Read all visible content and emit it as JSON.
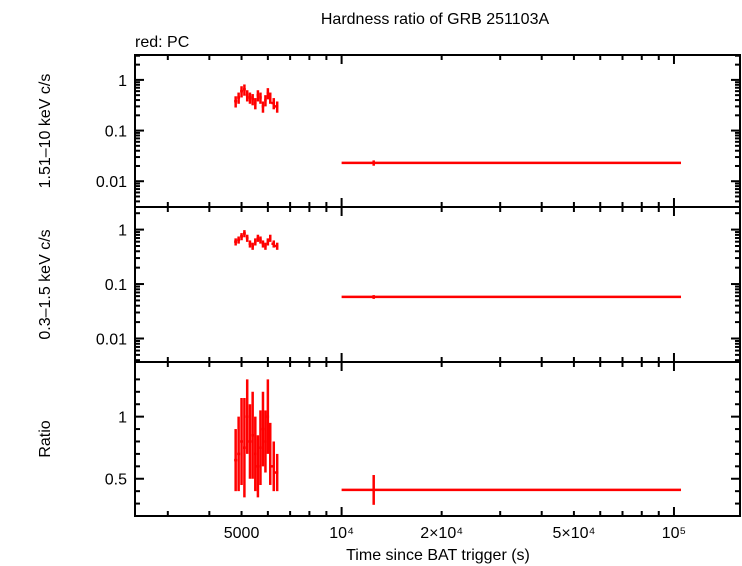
{
  "chart_data": {
    "type": "scatter",
    "title": "Hardness ratio of GRB 251103A",
    "legend_note": "red: PC",
    "xlabel": "Time since BAT trigger (s)",
    "xscale": "log",
    "xlim": [
      2390,
      158000
    ],
    "xticks": [
      {
        "v": 5000,
        "label": "5000"
      },
      {
        "v": 10000,
        "label": "10⁴"
      },
      {
        "v": 20000,
        "label": "2×10⁴"
      },
      {
        "v": 50000,
        "label": "5×10⁴"
      },
      {
        "v": 100000,
        "label": "10⁵"
      }
    ],
    "color": "#ff0000",
    "panels": [
      {
        "ylabel": "1.51–10 keV c/s",
        "yscale": "log",
        "ylim": [
          0.0031,
          3.1
        ],
        "yticks": [
          {
            "v": 1,
            "label": "1"
          },
          {
            "v": 0.1,
            "label": "0.1"
          },
          {
            "v": 0.01,
            "label": "0.01"
          }
        ],
        "points": [
          [
            4800,
            0.38
          ],
          [
            4900,
            0.45
          ],
          [
            5000,
            0.6
          ],
          [
            5100,
            0.65
          ],
          [
            5200,
            0.5
          ],
          [
            5300,
            0.45
          ],
          [
            5400,
            0.42
          ],
          [
            5500,
            0.35
          ],
          [
            5600,
            0.5
          ],
          [
            5700,
            0.45
          ],
          [
            5800,
            0.3
          ],
          [
            5900,
            0.4
          ],
          [
            6000,
            0.55
          ],
          [
            6100,
            0.45
          ],
          [
            6250,
            0.35
          ],
          [
            6400,
            0.3
          ],
          [
            12490,
            0.023
          ]
        ],
        "rel_err": [
          0.25,
          0.25,
          0.25,
          0.25,
          0.25,
          0.25,
          0.25,
          0.25,
          0.25,
          0.25,
          0.25,
          0.25,
          0.25,
          0.25,
          0.25,
          0.25,
          0.12
        ]
      },
      {
        "ylabel": "0.3–1.5 keV c/s",
        "yscale": "log",
        "ylim": [
          0.0037,
          2.6
        ],
        "yticks": [
          {
            "v": 1,
            "label": "1"
          },
          {
            "v": 0.1,
            "label": "0.1"
          },
          {
            "v": 0.01,
            "label": "0.01"
          }
        ],
        "points": [
          [
            4800,
            0.6
          ],
          [
            4900,
            0.65
          ],
          [
            5000,
            0.75
          ],
          [
            5100,
            0.85
          ],
          [
            5200,
            0.7
          ],
          [
            5300,
            0.55
          ],
          [
            5400,
            0.5
          ],
          [
            5500,
            0.6
          ],
          [
            5600,
            0.7
          ],
          [
            5700,
            0.65
          ],
          [
            5800,
            0.55
          ],
          [
            5900,
            0.5
          ],
          [
            6000,
            0.6
          ],
          [
            6100,
            0.7
          ],
          [
            6250,
            0.55
          ],
          [
            6400,
            0.5
          ],
          [
            12490,
            0.058
          ]
        ],
        "rel_err": [
          0.15,
          0.15,
          0.15,
          0.15,
          0.15,
          0.15,
          0.15,
          0.15,
          0.15,
          0.15,
          0.15,
          0.15,
          0.15,
          0.15,
          0.15,
          0.15,
          0.08
        ]
      },
      {
        "ylabel": "Ratio",
        "yscale": "linear",
        "ylim": [
          0.2,
          1.44
        ],
        "yticks": [
          {
            "v": 1,
            "label": "1"
          },
          {
            "v": 0.5,
            "label": "0.5"
          }
        ],
        "points": [
          [
            4800,
            0.65
          ],
          [
            4900,
            0.7
          ],
          [
            5000,
            0.8
          ],
          [
            5100,
            0.75
          ],
          [
            5200,
            1.0
          ],
          [
            5300,
            0.8
          ],
          [
            5400,
            0.85
          ],
          [
            5500,
            0.7
          ],
          [
            5600,
            0.6
          ],
          [
            5700,
            0.75
          ],
          [
            5800,
            0.9
          ],
          [
            5900,
            0.8
          ],
          [
            6000,
            1.0
          ],
          [
            6100,
            0.7
          ],
          [
            6250,
            0.6
          ],
          [
            6400,
            0.55
          ],
          [
            12490,
            0.41
          ]
        ],
        "abs_err": [
          0.25,
          0.3,
          0.35,
          0.4,
          0.3,
          0.3,
          0.35,
          0.3,
          0.25,
          0.3,
          0.3,
          0.25,
          0.3,
          0.25,
          0.2,
          0.15,
          0.12
        ]
      }
    ],
    "time_err": [
      [
        4750,
        4850
      ],
      [
        4850,
        4950
      ],
      [
        4950,
        5050
      ],
      [
        5050,
        5150
      ],
      [
        5150,
        5250
      ],
      [
        5250,
        5350
      ],
      [
        5350,
        5450
      ],
      [
        5450,
        5550
      ],
      [
        5550,
        5650
      ],
      [
        5650,
        5750
      ],
      [
        5750,
        5850
      ],
      [
        5850,
        5950
      ],
      [
        5950,
        6050
      ],
      [
        6050,
        6150
      ],
      [
        6150,
        6300
      ],
      [
        6300,
        6450
      ],
      [
        10000,
        105000
      ]
    ]
  }
}
